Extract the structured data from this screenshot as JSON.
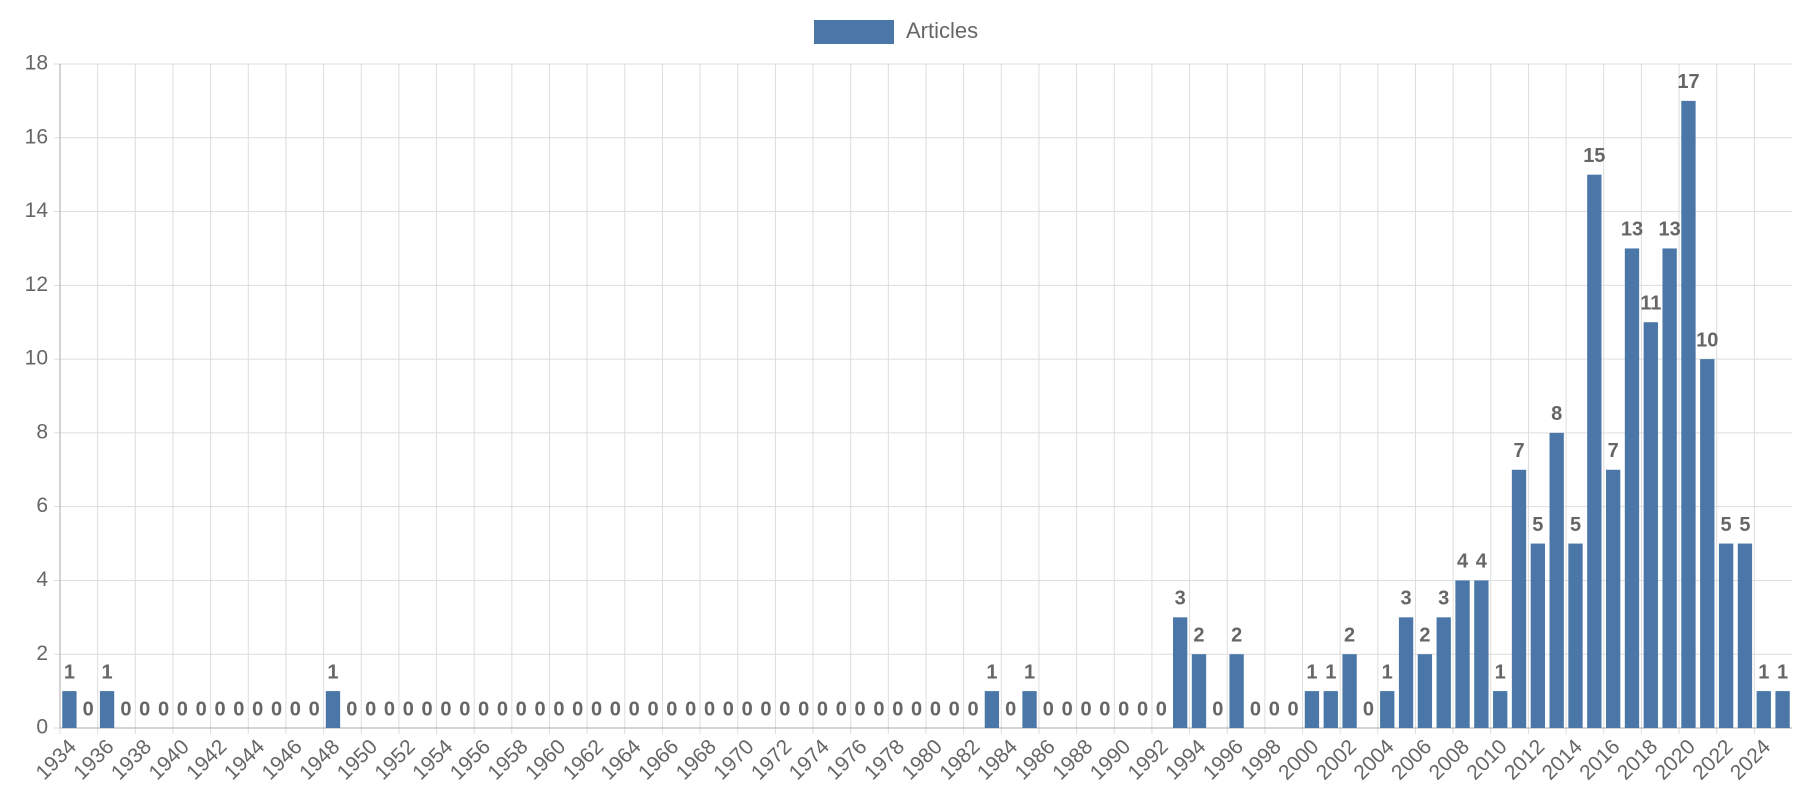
{
  "chart_data": {
    "type": "bar",
    "categories": [
      "1934",
      null,
      "1936",
      null,
      "1938",
      null,
      "1940",
      null,
      "1942",
      null,
      "1944",
      null,
      "1946",
      null,
      "1948",
      null,
      "1950",
      null,
      "1952",
      null,
      "1954",
      null,
      "1956",
      null,
      "1958",
      null,
      "1960",
      null,
      "1962",
      null,
      "1964",
      null,
      "1966",
      null,
      "1968",
      null,
      "1970",
      null,
      "1972",
      null,
      "1974",
      null,
      "1976",
      null,
      "1978",
      null,
      "1980",
      null,
      "1982",
      null,
      "1984",
      null,
      "1986",
      null,
      "1988",
      null,
      "1990",
      null,
      "1992",
      null,
      "1994",
      null,
      "1996",
      null,
      "1998",
      null,
      "2000",
      null,
      "2002",
      null,
      "2004",
      null,
      "2006",
      null,
      "2008",
      null,
      "2010",
      null,
      "2012",
      null,
      "2014",
      null,
      "2016",
      null,
      "2018",
      null,
      "2020",
      null,
      "2022",
      null,
      "2024",
      null
    ],
    "series": [
      {
        "name": "Articles",
        "color": "#4a76a8",
        "values": [
          1,
          0,
          1,
          0,
          0,
          0,
          0,
          0,
          0,
          0,
          0,
          0,
          0,
          0,
          1,
          0,
          0,
          0,
          0,
          0,
          0,
          0,
          0,
          0,
          0,
          0,
          0,
          0,
          0,
          0,
          0,
          0,
          0,
          0,
          0,
          0,
          0,
          0,
          0,
          0,
          0,
          0,
          0,
          0,
          0,
          0,
          0,
          0,
          0,
          1,
          0,
          1,
          0,
          0,
          0,
          0,
          0,
          0,
          0,
          3,
          2,
          0,
          2,
          0,
          0,
          0,
          1,
          1,
          2,
          0,
          1,
          3,
          2,
          3,
          4,
          4,
          1,
          7,
          5,
          8,
          5,
          15,
          7,
          13,
          11,
          13,
          17,
          10,
          5,
          5,
          1,
          1
        ]
      }
    ],
    "ylim": [
      0,
      18
    ],
    "yticks": [
      0,
      2,
      4,
      6,
      8,
      10,
      12,
      14,
      16,
      18
    ],
    "grid": true,
    "legend": "top"
  }
}
